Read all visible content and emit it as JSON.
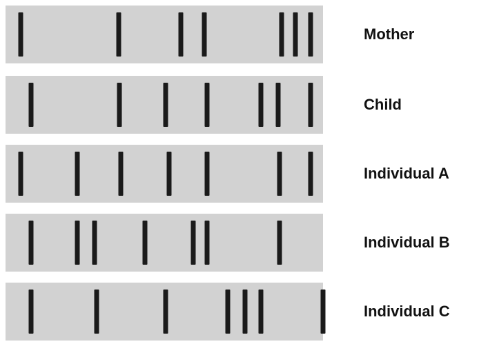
{
  "lanes": [
    {
      "label": "Mother"
    },
    {
      "label": "Child"
    },
    {
      "label": "Individual A"
    },
    {
      "label": "Individual B"
    },
    {
      "label": "Individual C"
    }
  ]
}
